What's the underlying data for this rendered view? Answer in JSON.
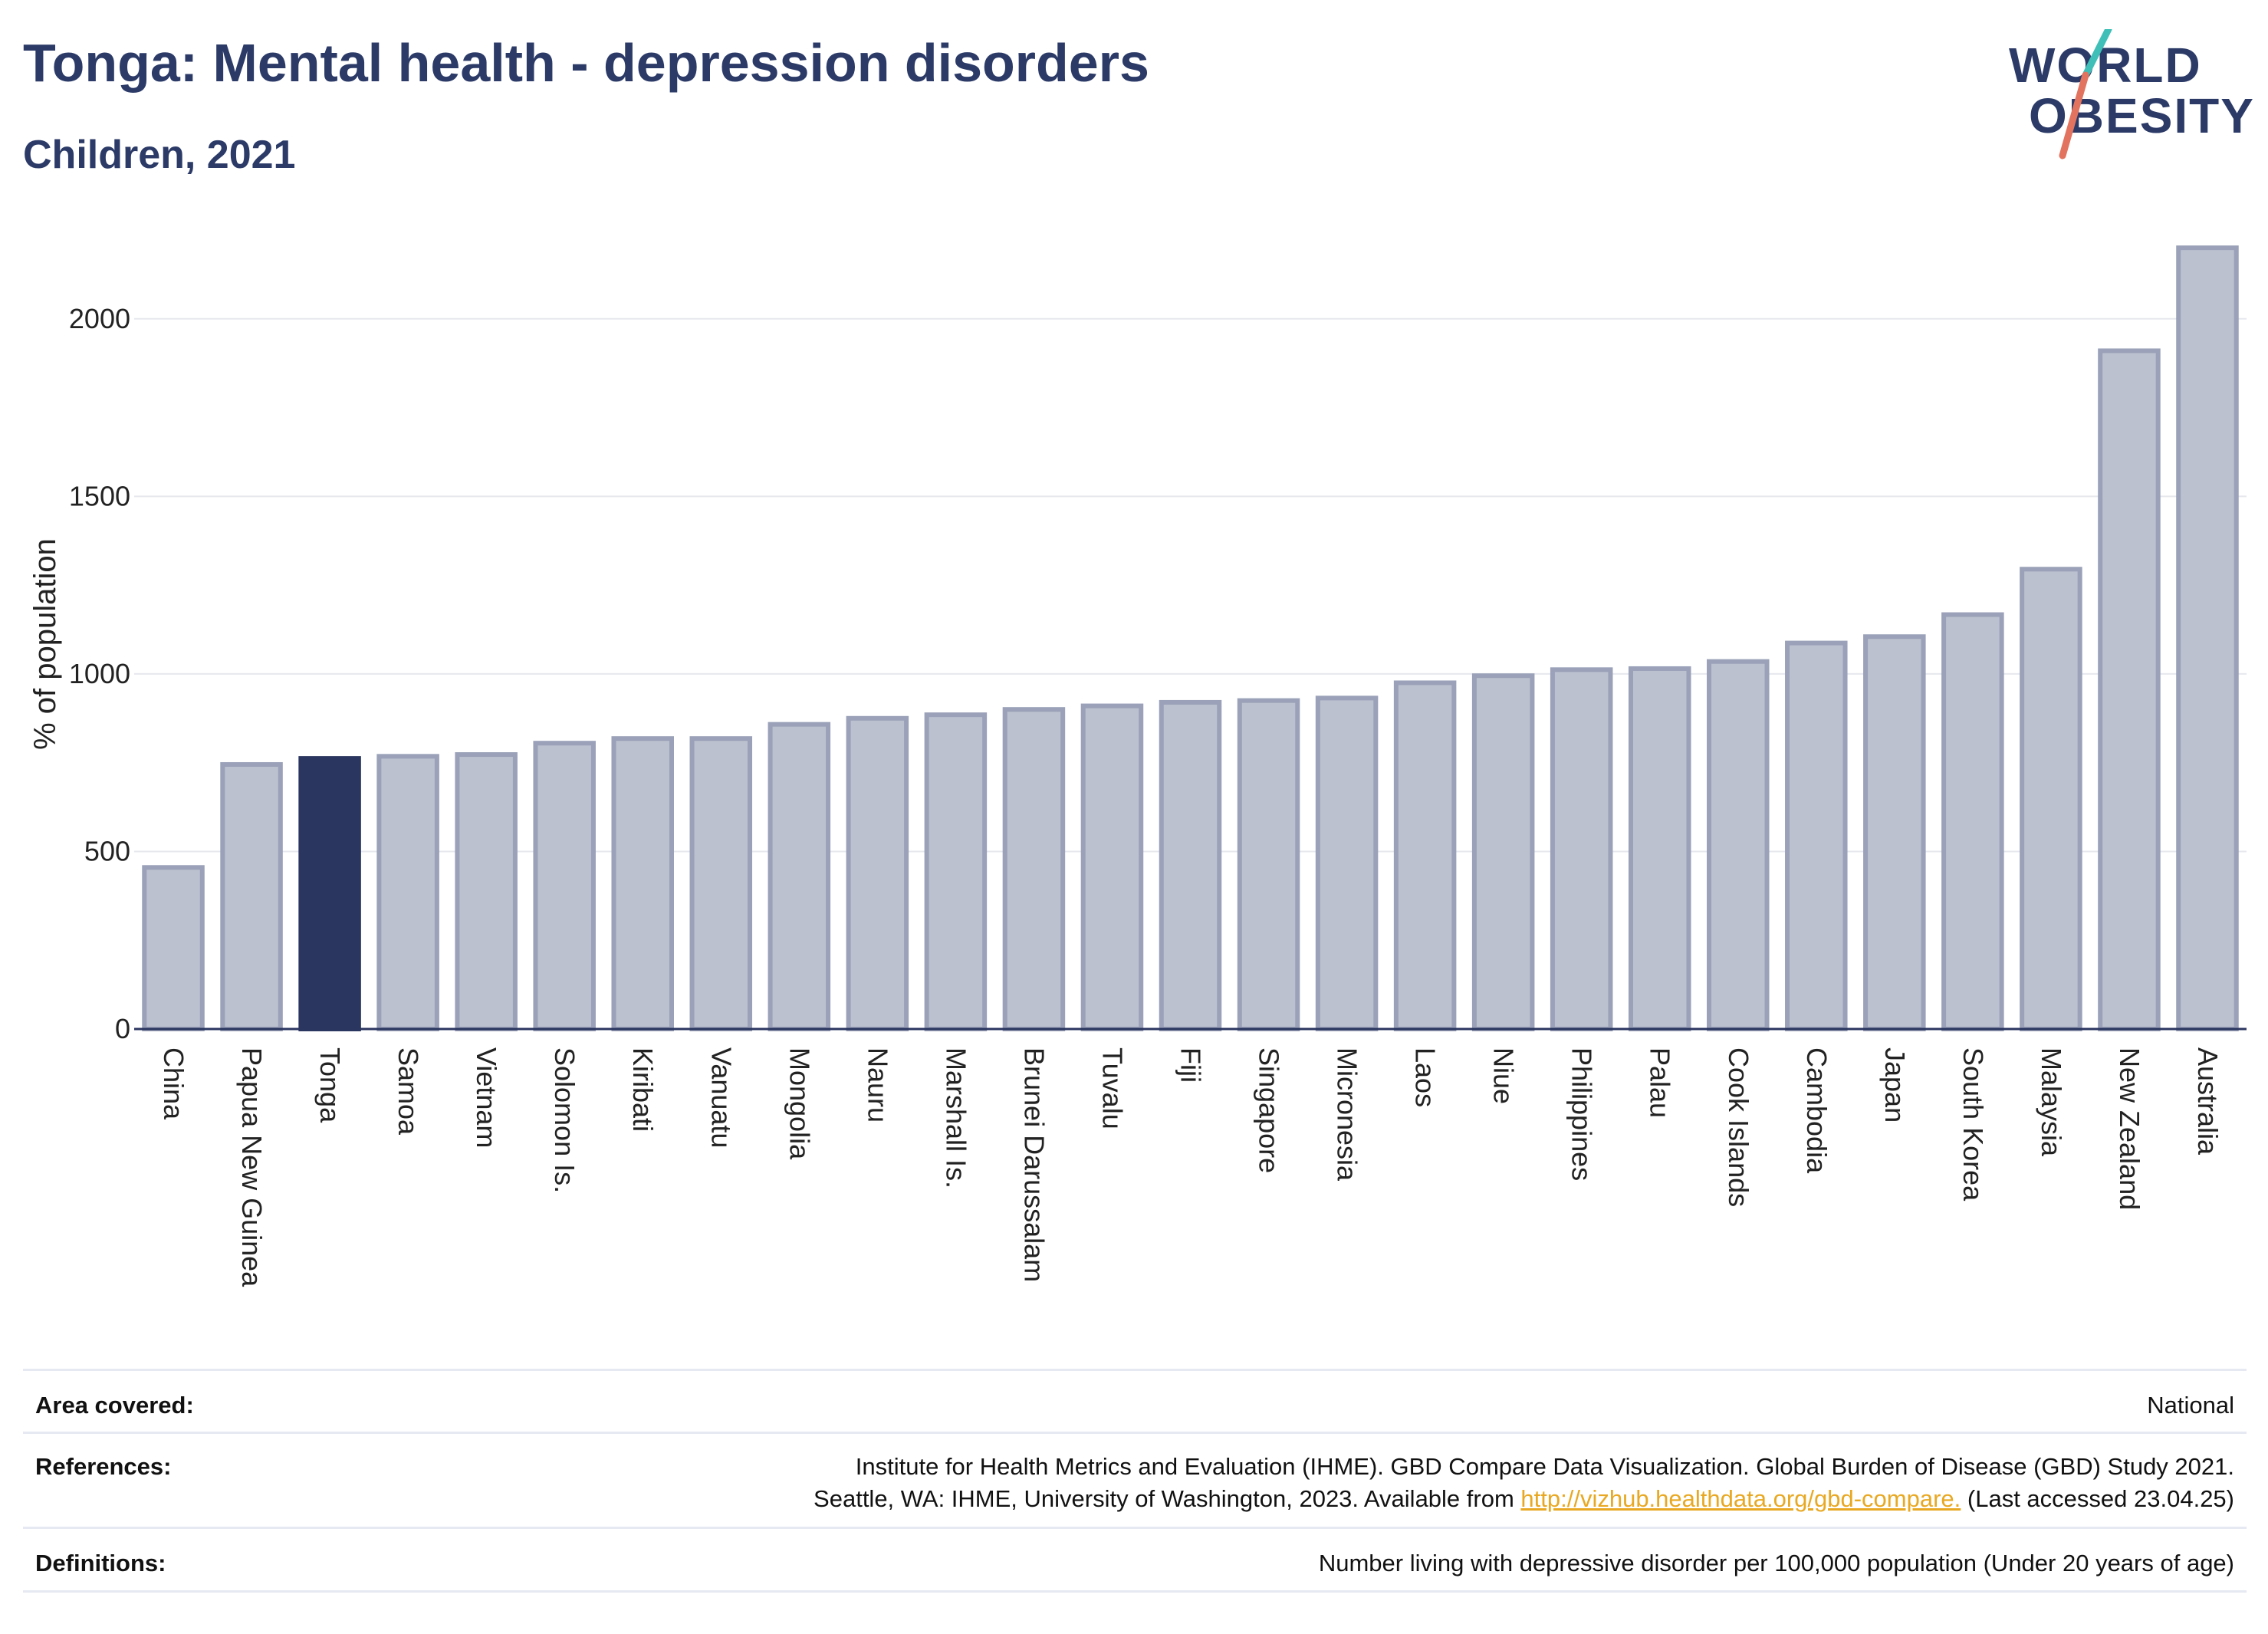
{
  "header": {
    "title": "Tonga: Mental health - depression disorders",
    "subtitle": "Children, 2021"
  },
  "logo": {
    "line1": "WORLD",
    "line2": "OBESITY"
  },
  "chart_data": {
    "type": "bar",
    "ylabel": "% of population",
    "xlabel": "",
    "ylim": [
      0,
      2250
    ],
    "yticks": [
      0,
      500,
      1000,
      1500,
      2000
    ],
    "grid": true,
    "highlight": "Tonga",
    "colors": {
      "highlight": "#2b3660",
      "default": "#bcc1cf",
      "default_border": "#9aa1b8",
      "grid": "#e6e8ee",
      "axis": "#2b3660"
    },
    "categories": [
      "China",
      "Papua New Guinea",
      "Tonga",
      "Samoa",
      "Vietnam",
      "Solomon Is.",
      "Kiribati",
      "Vanuatu",
      "Mongolia",
      "Nauru",
      "Marshall Is.",
      "Brunei Darussalam",
      "Tuvalu",
      "Fiji",
      "Singapore",
      "Micronesia",
      "Laos",
      "Niue",
      "Philippines",
      "Palau",
      "Cook Islands",
      "Cambodia",
      "Japan",
      "South Korea",
      "Malaysia",
      "New Zealand",
      "Australia"
    ],
    "values": [
      455,
      745,
      762,
      768,
      773,
      805,
      818,
      818,
      858,
      875,
      885,
      900,
      910,
      920,
      925,
      932,
      975,
      995,
      1012,
      1015,
      1035,
      1087,
      1105,
      1167,
      1295,
      1910,
      2200
    ]
  },
  "info": {
    "area_label": "Area covered:",
    "area_value": "National",
    "references_label": "References:",
    "references_line1": "Institute for Health Metrics and Evaluation (IHME). GBD Compare Data Visualization. Global Burden of Disease (GBD) Study 2021.",
    "references_line2_pre": "Seattle, WA: IHME, University of Washington, 2023. Available from ",
    "references_link": "http://vizhub.healthdata.org/gbd-compare.",
    "references_line2_post": " (Last accessed 23.04.25)",
    "definitions_label": "Definitions:",
    "definitions_value": "Number living with depressive disorder per 100,000 population (Under 20 years of age)"
  }
}
